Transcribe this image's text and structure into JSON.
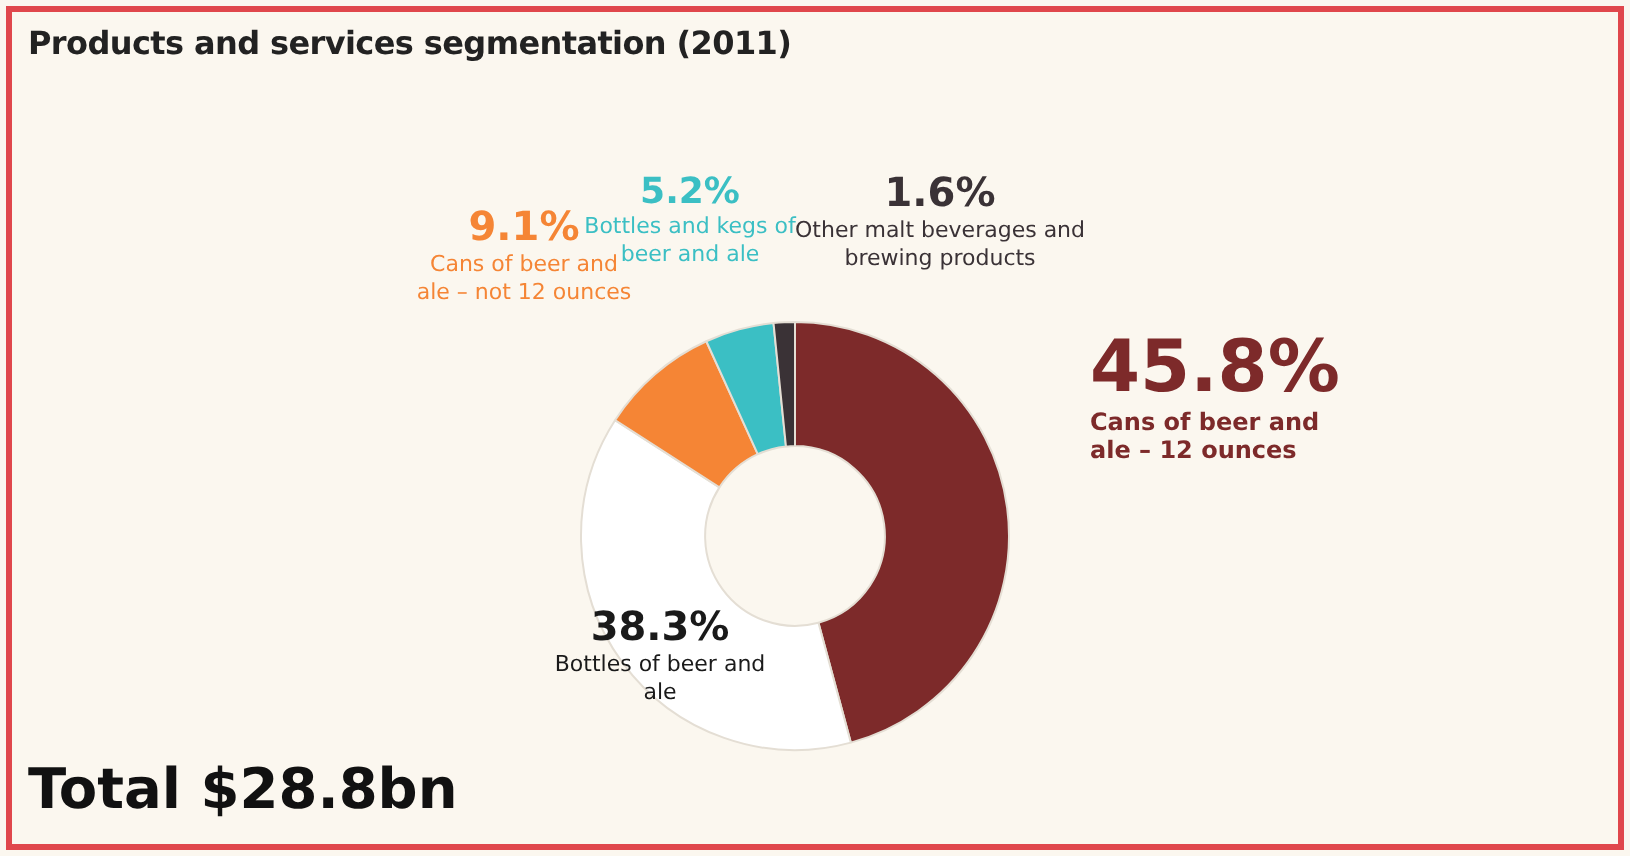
{
  "chart_data": {
    "type": "donut",
    "title": "Products and services segmentation (2011)",
    "categories": [
      "Cans of beer and ale – 12 ounces",
      "Bottles of beer and ale",
      "Cans of beer and ale – not 12 ounces",
      "Bottles and kegs of beer and ale",
      "Other malt beverages and brewing products"
    ],
    "values": [
      45.8,
      38.3,
      9.1,
      5.2,
      1.6
    ],
    "value_labels": [
      "45.8%",
      "38.3%",
      "9.1%",
      "5.2%",
      "1.6%"
    ],
    "colors": [
      "#7d2a2a",
      "#ffffff",
      "#f58535",
      "#3bbfc4",
      "#3a3236"
    ],
    "legend": false,
    "annotations": [
      "Total $28.8bn"
    ]
  }
}
